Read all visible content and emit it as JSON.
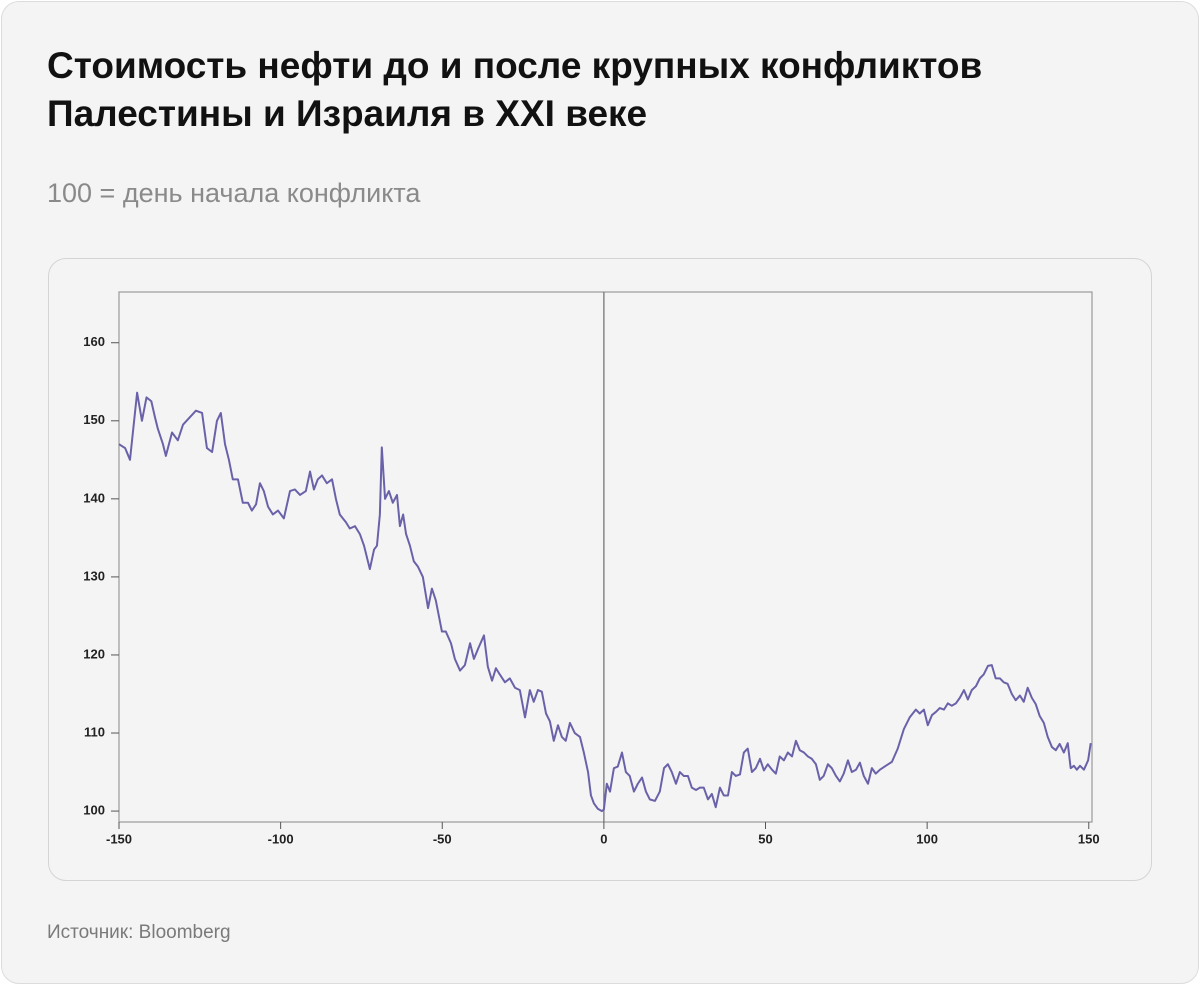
{
  "chart_data": {
    "type": "line",
    "title": "Стоимость нефти до и после крупных конфликтов Палестины и Израиля в XXI веке",
    "subtitle": "100 = день начала конфликта",
    "source": "Источник: Bloomberg",
    "xlim": [
      -150,
      151
    ],
    "ylim": [
      98.6,
      166.5
    ],
    "xticks": [
      -150,
      -100,
      -50,
      0,
      50,
      100,
      150
    ],
    "yticks": [
      100,
      110,
      120,
      130,
      140,
      150,
      160
    ],
    "vline": 0,
    "grid": false,
    "x": [
      -150,
      -148.1,
      -146.6,
      -144.4,
      -142.9,
      -141.5,
      -140,
      -138.9,
      -138,
      -136.4,
      -135.5,
      -133.6,
      -131.8,
      -130.2,
      -128,
      -126.2,
      -124.3,
      -122.8,
      -121.2,
      -119.7,
      -118.5,
      -117.2,
      -116,
      -114.8,
      -113.2,
      -111.7,
      -110.1,
      -108.9,
      -107.6,
      -106.4,
      -105.2,
      -103.9,
      -102.4,
      -100.8,
      -99,
      -97.1,
      -95.6,
      -94,
      -92.2,
      -90.9,
      -89.7,
      -88.5,
      -87.2,
      -85.7,
      -84.1,
      -82.9,
      -81.7,
      -79.8,
      -78.6,
      -77,
      -75.5,
      -74.2,
      -73.6,
      -72.4,
      -71.1,
      -70.2,
      -69.3,
      -68.7,
      -67.7,
      -66.5,
      -65.3,
      -64,
      -63.1,
      -62.1,
      -61.2,
      -60,
      -58.8,
      -57.5,
      -56,
      -54.4,
      -53.2,
      -52,
      -50.1,
      -48.9,
      -47.3,
      -46.1,
      -44.5,
      -43,
      -41.4,
      -40.2,
      -38.7,
      -37.1,
      -35.9,
      -34.6,
      -33.4,
      -32.2,
      -30.6,
      -29.1,
      -27.5,
      -26,
      -24.4,
      -22.9,
      -21.7,
      -20.4,
      -19.2,
      -17.9,
      -16.7,
      -15.5,
      -14.2,
      -13,
      -11.8,
      -10.5,
      -9,
      -7.4,
      -6.2,
      -4.9,
      -4,
      -3.1,
      -1.9,
      -0.6,
      0,
      0.9,
      1.9,
      3.1,
      4.3,
      5.6,
      6.8,
      8,
      9.3,
      10.5,
      11.8,
      13,
      14.2,
      15.8,
      17.3,
      18.6,
      19.8,
      21,
      22.3,
      23.5,
      24.7,
      26,
      27.2,
      28.5,
      29.7,
      30.9,
      32.2,
      33.4,
      34.6,
      35.9,
      37.1,
      38.4,
      39.6,
      40.8,
      42.1,
      43.3,
      44.5,
      45.8,
      47,
      48.3,
      49.5,
      50.7,
      52,
      53.2,
      54.4,
      55.7,
      56.9,
      58.2,
      59.4,
      60.6,
      61.9,
      63.1,
      64.3,
      65.6,
      66.8,
      68,
      69.3,
      70.5,
      71.8,
      73,
      74.2,
      75.5,
      76.7,
      78,
      79.2,
      80.4,
      81.7,
      82.9,
      84.1,
      85.4,
      87.2,
      89.1,
      90.9,
      92.8,
      94.6,
      96.5,
      97.7,
      99,
      100.2,
      101.5,
      102.7,
      103.9,
      105.2,
      106.4,
      107.6,
      108.9,
      110.1,
      111.4,
      112.6,
      113.8,
      115.1,
      116.3,
      117.5,
      118.8,
      120,
      121.2,
      122.5,
      123.7,
      124.9,
      126.2,
      127.4,
      128.7,
      129.9,
      131.1,
      132.4,
      133.6,
      134.8,
      136.1,
      137.3,
      138.6,
      139.8,
      141,
      142.3,
      143.5,
      144.4,
      145.4,
      146.3,
      147.3,
      148.5,
      149.8,
      150.6
    ],
    "series": [
      {
        "color": "#6a62a9",
        "values": [
          147,
          146.5,
          145,
          153.6,
          150,
          153,
          152.5,
          150.5,
          149,
          147,
          145.5,
          148.5,
          147.5,
          149.5,
          150.5,
          151.3,
          151,
          146.5,
          146,
          150,
          151,
          147,
          145,
          142.5,
          142.5,
          139.5,
          139.5,
          138.5,
          139.3,
          142,
          141,
          139,
          138,
          138.5,
          137.5,
          141,
          141.2,
          140.5,
          141,
          143.5,
          141.2,
          142.5,
          143,
          142,
          142.5,
          140,
          138,
          137,
          136.2,
          136.5,
          135.5,
          134,
          133,
          131,
          133.5,
          134,
          138,
          146.6,
          140,
          141,
          139.5,
          140.5,
          136.5,
          138,
          135.5,
          134,
          132,
          131.3,
          130,
          126,
          128.5,
          127,
          123,
          123,
          121.5,
          119.5,
          118,
          118.7,
          121.5,
          119.5,
          121,
          122.5,
          118.5,
          116.7,
          118.3,
          117.5,
          116.5,
          117,
          115.8,
          115.5,
          112,
          115.5,
          114,
          115.5,
          115.3,
          112.5,
          111.5,
          109,
          111,
          109.5,
          109,
          111.3,
          110,
          109.5,
          107.5,
          105,
          102,
          101,
          100.3,
          100,
          100.2,
          103.5,
          102.5,
          105.5,
          105.7,
          107.5,
          105,
          104.5,
          102.5,
          103.5,
          104.3,
          102.5,
          101.5,
          101.3,
          102.5,
          105.5,
          106,
          105,
          103.5,
          105,
          104.5,
          104.5,
          103,
          102.7,
          103,
          103,
          101.5,
          102.2,
          100.5,
          103,
          102,
          102,
          105,
          104.5,
          104.7,
          107.5,
          108,
          105,
          105.5,
          106.7,
          105.2,
          106,
          105.3,
          104.8,
          107,
          106.5,
          107.5,
          107,
          109,
          107.8,
          107.5,
          107,
          106.7,
          106,
          104,
          104.5,
          106,
          105.5,
          104.5,
          103.8,
          104.8,
          106.5,
          105,
          105.3,
          106.2,
          104.5,
          103.5,
          105.5,
          104.8,
          105.3,
          105.8,
          106.3,
          108,
          110.5,
          112,
          113,
          112.5,
          113,
          111,
          112.3,
          112.7,
          113.2,
          113,
          113.8,
          113.5,
          113.8,
          114.5,
          115.5,
          114.3,
          115.5,
          116,
          117,
          117.5,
          118.6,
          118.7,
          117,
          117,
          116.5,
          116.3,
          115,
          114.2,
          114.8,
          114,
          115.8,
          114.5,
          113.7,
          112.2,
          111.3,
          109.5,
          108.2,
          107.8,
          108.6,
          107.5,
          108.7,
          105.5,
          105.8,
          105.3,
          105.8,
          105.3,
          106.5,
          108.7
        ]
      }
    ]
  }
}
